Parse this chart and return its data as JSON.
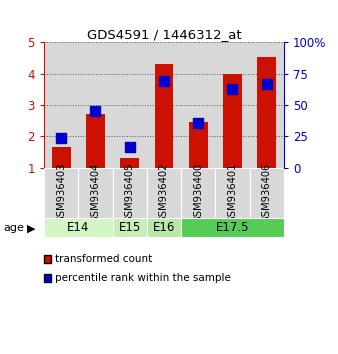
{
  "title": "GDS4591 / 1446312_at",
  "samples": [
    "GSM936403",
    "GSM936404",
    "GSM936405",
    "GSM936402",
    "GSM936400",
    "GSM936401",
    "GSM936406"
  ],
  "red_values": [
    1.65,
    2.7,
    1.3,
    4.3,
    2.45,
    4.0,
    4.55
  ],
  "blue_values": [
    1.95,
    2.82,
    1.65,
    3.78,
    2.42,
    3.52,
    3.68
  ],
  "ylim_left": [
    1,
    5
  ],
  "ylim_right": [
    0,
    100
  ],
  "yticks_left": [
    1,
    2,
    3,
    4,
    5
  ],
  "yticks_right": [
    0,
    25,
    50,
    75,
    100
  ],
  "age_groups": [
    {
      "label": "E14",
      "spans": [
        0,
        2
      ],
      "color": "#d4f5c4"
    },
    {
      "label": "E15",
      "spans": [
        2,
        3
      ],
      "color": "#c8efb8"
    },
    {
      "label": "E16",
      "spans": [
        3,
        4
      ],
      "color": "#b8e8a8"
    },
    {
      "label": "E17.5",
      "spans": [
        4,
        7
      ],
      "color": "#55cc55"
    }
  ],
  "bar_color": "#cc1100",
  "dot_color": "#0000cc",
  "bar_width": 0.55,
  "dot_size": 45,
  "xlabel_color": "#cc1100",
  "ylabel_right_color": "#0000cc",
  "grid_color": "#555555",
  "sample_bg_color": "#d8d8d8",
  "plot_bg": "#ffffff",
  "legend_red": "transformed count",
  "legend_blue": "percentile rank within the sample",
  "age_label": "age"
}
